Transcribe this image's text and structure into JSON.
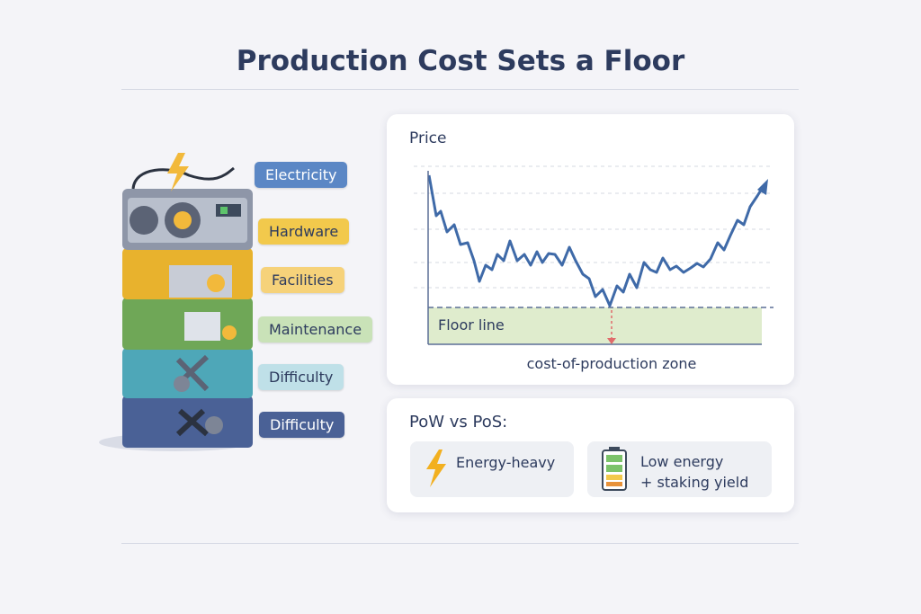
{
  "title": "Production Cost Sets a Floor",
  "stack": {
    "labels": [
      "Electricity",
      "Hardware",
      "Facilities",
      "Maintenance",
      "Difficulty",
      "Difficulty"
    ]
  },
  "price_panel": {
    "axis_label": "Price",
    "floor_label": "Floor line",
    "zone_label": "cost-of-production zone"
  },
  "comparison": {
    "title": "PoW vs PoS:",
    "items": [
      {
        "lines": [
          "Energy-heavy"
        ]
      },
      {
        "lines": [
          "Low energy",
          "+ staking yield"
        ]
      }
    ]
  }
}
